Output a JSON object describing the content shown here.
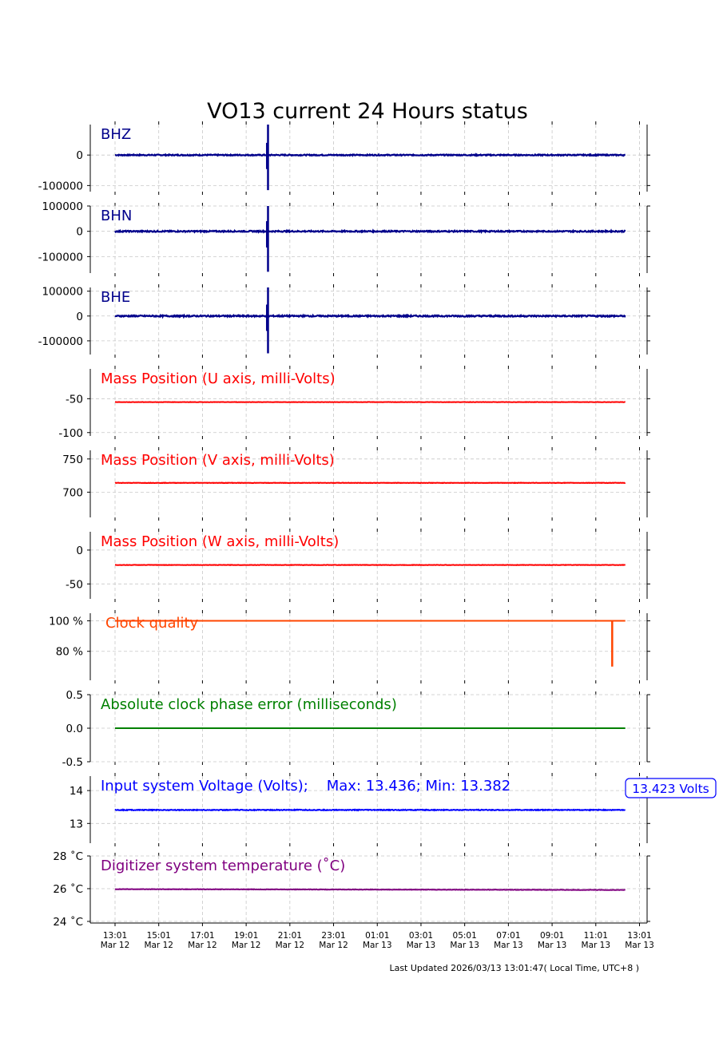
{
  "title": "VO13 current 24 Hours status",
  "footer": "Last Updated 2026/03/13 13:01:47( Local Time, UTC+8 )",
  "x_ticks": [
    [
      "13:01",
      "Mar 12"
    ],
    [
      "15:01",
      "Mar 12"
    ],
    [
      "17:01",
      "Mar 12"
    ],
    [
      "19:01",
      "Mar 12"
    ],
    [
      "21:01",
      "Mar 12"
    ],
    [
      "23:01",
      "Mar 12"
    ],
    [
      "01:01",
      "Mar 13"
    ],
    [
      "03:01",
      "Mar 13"
    ],
    [
      "05:01",
      "Mar 13"
    ],
    [
      "07:01",
      "Mar 13"
    ],
    [
      "09:01",
      "Mar 13"
    ],
    [
      "11:01",
      "Mar 13"
    ],
    [
      "13:01",
      "Mar 13"
    ]
  ],
  "chart_data": [
    {
      "type": "line",
      "label": "BHZ",
      "color": "#00008b",
      "signal": "seismic",
      "x_range_hours": [
        0,
        23.35
      ],
      "ylim": [
        -120000,
        100000
      ],
      "yticks": [
        {
          "v": 0,
          "t": "0"
        },
        {
          "v": -100000,
          "t": "-100000"
        }
      ],
      "baseline": 0,
      "noise": 1800,
      "spike": {
        "at_hours": 7.0,
        "min": -115000,
        "max": 100000
      }
    },
    {
      "type": "line",
      "label": "BHN",
      "color": "#00008b",
      "signal": "seismic",
      "x_range_hours": [
        0,
        23.35
      ],
      "ylim": [
        -165000,
        100000
      ],
      "yticks": [
        {
          "v": 100000,
          "t": "100000"
        },
        {
          "v": 0,
          "t": "0"
        },
        {
          "v": -100000,
          "t": "-100000"
        }
      ],
      "baseline": 0,
      "noise": 2500,
      "spike": {
        "at_hours": 7.0,
        "min": -160000,
        "max": 100000
      }
    },
    {
      "type": "line",
      "label": "BHE",
      "color": "#00008b",
      "signal": "seismic",
      "x_range_hours": [
        0,
        23.35
      ],
      "ylim": [
        -155000,
        115000
      ],
      "yticks": [
        {
          "v": 100000,
          "t": "100000"
        },
        {
          "v": 0,
          "t": "0"
        },
        {
          "v": -100000,
          "t": "-100000"
        }
      ],
      "baseline": 0,
      "noise": 2800,
      "spike": {
        "at_hours": 7.0,
        "min": -150000,
        "max": 115000
      }
    },
    {
      "type": "line",
      "label": "Mass Position (U axis, milli-Volts)",
      "color": "#ff0000",
      "signal": "flat",
      "x_range_hours": [
        0,
        23.35
      ],
      "ylim": [
        -105,
        -6
      ],
      "yticks": [
        {
          "v": -50,
          "t": "-50"
        },
        {
          "v": -100,
          "t": "-100"
        }
      ],
      "baseline": -55,
      "noise": 0.2
    },
    {
      "type": "line",
      "label": "Mass Position (V axis, milli-Volts)",
      "color": "#ff0000",
      "signal": "flat",
      "x_range_hours": [
        0,
        23.35
      ],
      "ylim": [
        662,
        763
      ],
      "yticks": [
        {
          "v": 750,
          "t": "750"
        },
        {
          "v": 700,
          "t": "700"
        }
      ],
      "baseline": 714,
      "noise": 0.3
    },
    {
      "type": "line",
      "label": "Mass Position (W axis, milli-Volts)",
      "color": "#ff0000",
      "signal": "flat",
      "x_range_hours": [
        0,
        23.35
      ],
      "ylim": [
        -72,
        27
      ],
      "yticks": [
        {
          "v": 0,
          "t": "0"
        },
        {
          "v": -50,
          "t": "-50"
        }
      ],
      "baseline": -22,
      "noise": 0.25
    },
    {
      "type": "line",
      "label": "Clock quality",
      "color": "#ff4500",
      "signal": "clock",
      "x_range_hours": [
        0,
        23.35
      ],
      "ylim": [
        61,
        105
      ],
      "yticks": [
        {
          "v": 100,
          "t": "100 %"
        },
        {
          "v": 80,
          "t": "80 %"
        }
      ],
      "baseline": 100,
      "noise": 0,
      "dip": {
        "at_hours": 22.75,
        "value": 70
      }
    },
    {
      "type": "line",
      "label": "Absolute clock phase error (milliseconds)",
      "color": "#008000",
      "signal": "flat",
      "x_range_hours": [
        0,
        23.35
      ],
      "ylim": [
        -0.5,
        0.5
      ],
      "yticks": [
        {
          "v": 0.5,
          "t": "0.5"
        },
        {
          "v": 0.0,
          "t": "0.0"
        },
        {
          "v": -0.5,
          "t": "-0.5"
        }
      ],
      "baseline": 0,
      "noise": 0
    },
    {
      "type": "line",
      "label": "Input system Voltage (Volts);    Max: 13.436; Min: 13.382",
      "color": "#0000ff",
      "signal": "flat",
      "x_range_hours": [
        0,
        23.35
      ],
      "ylim": [
        12.4,
        14.44
      ],
      "yticks": [
        {
          "v": 14,
          "t": "14"
        },
        {
          "v": 13,
          "t": "13"
        }
      ],
      "baseline": 13.41,
      "noise": 0.012,
      "callout": "13.423 Volts"
    },
    {
      "type": "line",
      "label": "Digitizer system temperature (˚C)",
      "color": "#800080",
      "signal": "flat",
      "x_range_hours": [
        0,
        23.35
      ],
      "ylim": [
        23.9,
        28.0
      ],
      "yticks": [
        {
          "v": 28,
          "t": "28 ˚C"
        },
        {
          "v": 26,
          "t": "26 ˚C"
        },
        {
          "v": 24,
          "t": "24 ˚C"
        }
      ],
      "baseline": 25.97,
      "noise": 0.012,
      "drift": -0.05
    }
  ]
}
